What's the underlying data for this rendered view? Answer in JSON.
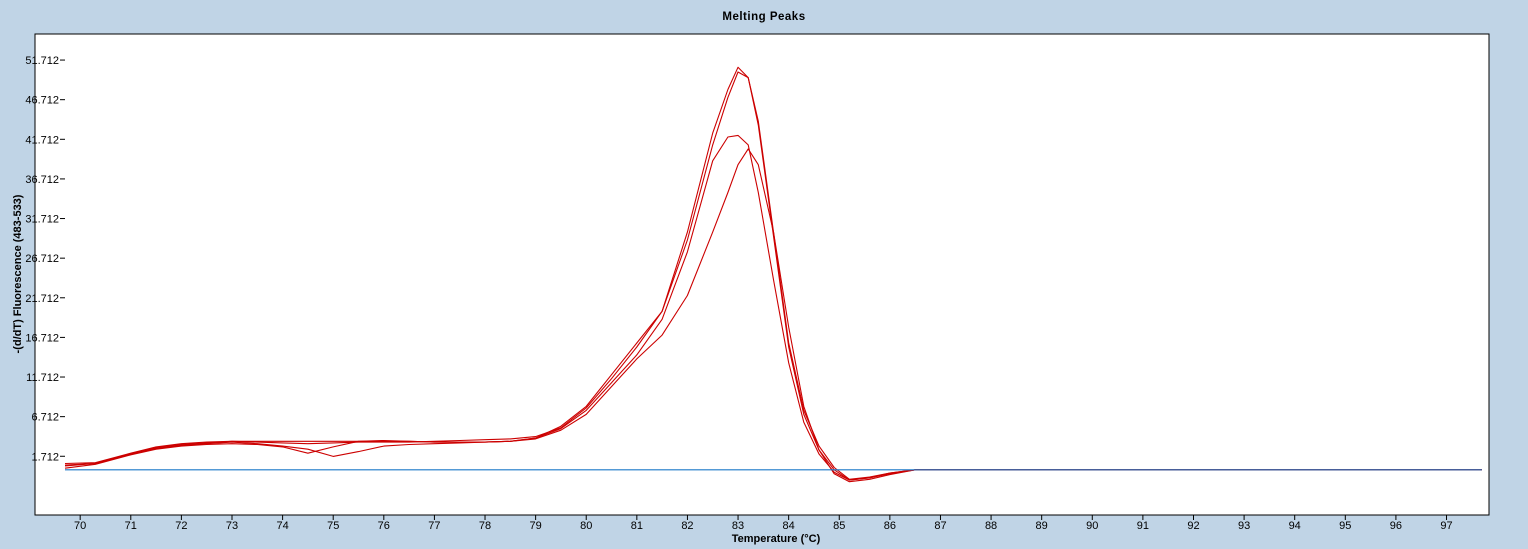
{
  "chart_data": {
    "type": "line",
    "title": "Melting Peaks",
    "xlabel": "Temperature (°C)",
    "ylabel": "-(d/dT) Fluorescence (483-533)",
    "xlim": [
      69.7,
      97.8
    ],
    "ylim": [
      -5.7,
      55
    ],
    "x_ticks": [
      70,
      71,
      72,
      73,
      74,
      75,
      76,
      77,
      78,
      79,
      80,
      81,
      82,
      83,
      84,
      85,
      86,
      87,
      88,
      89,
      90,
      91,
      92,
      93,
      94,
      95,
      96,
      97
    ],
    "y_ticks": [
      1.712,
      6.712,
      11.712,
      16.712,
      21.712,
      26.712,
      31.712,
      36.712,
      41.712,
      46.712,
      51.712
    ],
    "y_tick_labels": [
      "1.712",
      "6.712",
      "11.712",
      "16.712",
      "21.712",
      "26.712",
      "31.712",
      "36.712",
      "41.712",
      "46.712",
      "51.712"
    ],
    "grid": false,
    "colors": {
      "sample": "#cc0000",
      "baseline": "#1a78c8"
    },
    "series": [
      {
        "color": "#cc0000",
        "x": [
          69.7,
          70.3,
          71,
          71.5,
          72,
          72.5,
          73,
          73.5,
          74,
          74.5,
          75,
          75.5,
          76,
          76.5,
          77,
          77.5,
          78,
          78.5,
          79,
          79.5,
          80,
          80.5,
          81,
          81.5,
          82,
          82.5,
          82.8,
          83,
          83.2,
          83.4,
          83.7,
          84,
          84.3,
          84.6,
          84.9,
          85.2,
          85.6,
          86,
          86.5,
          87,
          88,
          90,
          92,
          94,
          96,
          97.7
        ],
        "y": [
          0.8,
          0.9,
          2.1,
          2.9,
          3.3,
          3.5,
          3.6,
          3.5,
          3.4,
          3.3,
          3.4,
          3.5,
          3.5,
          3.5,
          3.6,
          3.7,
          3.8,
          3.9,
          4.2,
          5.3,
          7.8,
          11.5,
          15.5,
          20.0,
          30.0,
          42.5,
          48.0,
          50.8,
          49.5,
          43.5,
          29.5,
          15.5,
          7.0,
          2.5,
          0.0,
          -1.3,
          -1.0,
          -0.5,
          0,
          0,
          0,
          0,
          0,
          0,
          0,
          0
        ]
      },
      {
        "color": "#cc0000",
        "x": [
          69.7,
          70.3,
          71,
          71.5,
          72,
          72.5,
          73,
          73.5,
          74,
          74.5,
          75,
          75.5,
          76,
          76.5,
          77,
          77.5,
          78,
          78.5,
          79,
          79.5,
          80,
          80.5,
          81,
          81.5,
          82,
          82.5,
          82.8,
          83,
          83.2,
          83.4,
          83.7,
          84,
          84.3,
          84.6,
          84.9,
          85.2,
          85.6,
          86,
          86.5,
          87,
          88,
          90,
          92,
          94,
          96,
          97.7
        ],
        "y": [
          0.2,
          0.7,
          1.9,
          2.6,
          3.0,
          3.2,
          3.3,
          3.2,
          2.9,
          2.1,
          2.9,
          3.6,
          3.7,
          3.6,
          3.5,
          3.5,
          3.5,
          3.6,
          3.9,
          5.0,
          7.0,
          10.5,
          14.0,
          17.0,
          22.0,
          30.0,
          35.0,
          38.5,
          40.5,
          38.5,
          30.0,
          18.0,
          8.0,
          2.5,
          -0.5,
          -1.5,
          -1.2,
          -0.6,
          0,
          0,
          0,
          0,
          0,
          0,
          0,
          0
        ]
      },
      {
        "color": "#cc0000",
        "x": [
          69.7,
          70.3,
          71,
          71.5,
          72,
          72.5,
          73,
          73.5,
          74,
          74.5,
          75,
          75.5,
          76,
          76.5,
          77,
          77.5,
          78,
          78.5,
          79,
          79.5,
          80,
          80.5,
          81,
          81.5,
          82,
          82.5,
          82.8,
          83,
          83.2,
          83.4,
          83.7,
          84,
          84.3,
          84.6,
          84.9,
          85.2,
          85.6,
          86,
          86.5,
          87,
          88,
          90,
          92,
          94,
          96,
          97.7
        ],
        "y": [
          0.5,
          0.8,
          2.0,
          2.7,
          3.1,
          3.3,
          3.5,
          3.3,
          3.0,
          2.6,
          1.7,
          2.3,
          3.0,
          3.2,
          3.3,
          3.4,
          3.5,
          3.6,
          4.0,
          5.2,
          7.5,
          11.0,
          14.5,
          19.0,
          27.5,
          39.0,
          42.0,
          42.2,
          41.0,
          35.0,
          24.0,
          13.5,
          6.0,
          2.0,
          -0.3,
          -1.3,
          -1.0,
          -0.4,
          0,
          0,
          0,
          0,
          0,
          0,
          0,
          0
        ]
      },
      {
        "color": "#cc0000",
        "x": [
          69.7,
          70.3,
          71,
          71.5,
          72,
          72.5,
          73,
          73.5,
          74,
          74.5,
          75,
          75.5,
          76,
          76.5,
          77,
          77.5,
          78,
          78.5,
          79,
          79.5,
          80,
          80.5,
          81,
          81.5,
          82,
          82.5,
          82.8,
          83,
          83.2,
          83.4,
          83.7,
          84,
          84.3,
          84.6,
          84.9,
          85.2,
          85.6,
          86,
          86.5,
          87,
          88,
          90,
          92,
          94,
          96,
          97.7
        ],
        "y": [
          0.6,
          0.8,
          2.0,
          2.8,
          3.2,
          3.4,
          3.6,
          3.6,
          3.6,
          3.6,
          3.6,
          3.6,
          3.6,
          3.6,
          3.5,
          3.5,
          3.5,
          3.6,
          4.0,
          5.5,
          8.0,
          12.0,
          16.0,
          20.0,
          29.0,
          41.0,
          47.0,
          50.2,
          49.5,
          44.0,
          30.0,
          16.0,
          7.5,
          3.0,
          0.3,
          -1.2,
          -0.9,
          -0.4,
          0,
          0,
          0,
          0,
          0,
          0,
          0,
          0
        ]
      },
      {
        "color": "#1a78c8",
        "x": [
          69.7,
          97.7
        ],
        "y": [
          0,
          0
        ]
      }
    ]
  }
}
